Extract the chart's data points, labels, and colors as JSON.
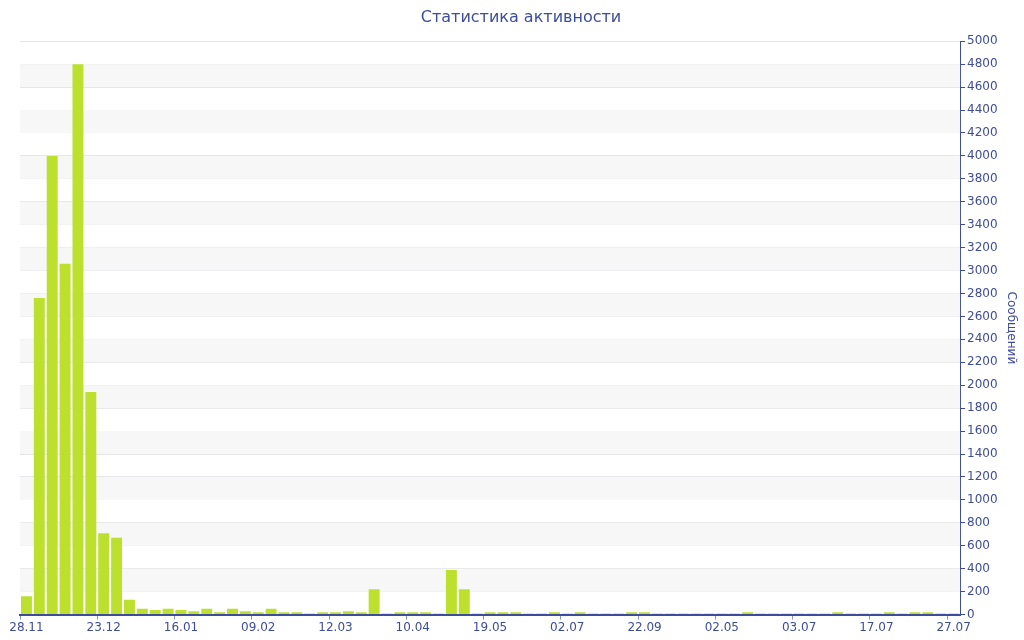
{
  "chart_data": {
    "type": "bar",
    "title": "Статистика активности",
    "ylabel": "Сообщений",
    "categories": [
      "28.11",
      null,
      null,
      null,
      null,
      null,
      "23.12",
      null,
      null,
      null,
      null,
      null,
      "16.01",
      null,
      null,
      null,
      null,
      null,
      "09.02",
      null,
      null,
      null,
      null,
      null,
      "12.03",
      null,
      null,
      null,
      null,
      null,
      "10.04",
      null,
      null,
      null,
      null,
      null,
      "19.05",
      null,
      null,
      null,
      null,
      null,
      "02.07",
      null,
      null,
      null,
      null,
      null,
      "22.09",
      null,
      null,
      null,
      null,
      null,
      "02.05",
      null,
      null,
      null,
      null,
      null,
      "03.07",
      null,
      null,
      null,
      null,
      null,
      "17.07",
      null,
      null,
      null,
      null,
      null,
      "27.07"
    ],
    "values": [
      160,
      2760,
      4000,
      3060,
      4800,
      1940,
      710,
      670,
      130,
      50,
      40,
      50,
      40,
      30,
      50,
      20,
      50,
      30,
      20,
      50,
      20,
      20,
      10,
      20,
      20,
      30,
      20,
      220,
      10,
      20,
      20,
      20,
      10,
      390,
      220,
      10,
      20,
      20,
      20,
      10,
      10,
      20,
      10,
      20,
      10,
      10,
      10,
      20,
      20,
      10,
      10,
      10,
      10,
      10,
      10,
      10,
      20,
      10,
      10,
      10,
      10,
      10,
      10,
      20,
      10,
      10,
      10,
      20,
      10,
      20,
      20,
      10,
      10
    ],
    "color": "#bde02e",
    "ylim": [
      0,
      5000
    ],
    "yticks": [
      0,
      200,
      400,
      600,
      800,
      1000,
      1200,
      1400,
      1600,
      1800,
      2000,
      2200,
      2400,
      2600,
      2800,
      3000,
      3200,
      3400,
      3600,
      3800,
      4000,
      4200,
      4400,
      4600,
      4800,
      5000
    ],
    "grid": "y"
  }
}
